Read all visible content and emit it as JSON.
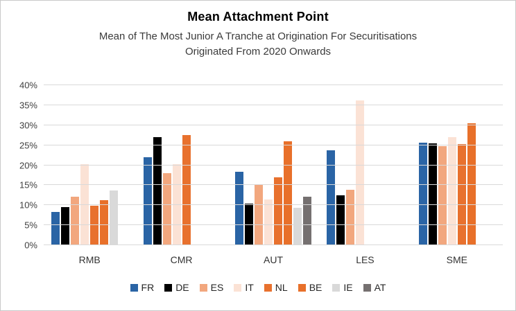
{
  "frame": {
    "background": "#FFFFFF",
    "border_color": "#C9C9C9"
  },
  "chart_data": {
    "type": "bar",
    "title": "Mean Attachment Point",
    "subtitle_line1": "Mean of The Most Junior A Tranche at Origination For Securitisations",
    "subtitle_line2": "Originated From 2020 Onwards",
    "xlabel": "",
    "ylabel": "",
    "categories": [
      "RMB",
      "CMR",
      "AUT",
      "LES",
      "SME"
    ],
    "series": [
      {
        "name": "FR",
        "color": "#2A64A5",
        "values": [
          8.3,
          22.0,
          18.4,
          23.8,
          25.7
        ]
      },
      {
        "name": "DE",
        "color": "#000000",
        "values": [
          9.5,
          27.1,
          10.4,
          12.4,
          25.5
        ]
      },
      {
        "name": "ES",
        "color": "#F2A77E",
        "values": [
          12.1,
          18.0,
          15.3,
          13.8,
          24.8
        ]
      },
      {
        "name": "IT",
        "color": "#FBE2D5",
        "values": [
          20.2,
          20.2,
          11.5,
          36.2,
          27.1
        ]
      },
      {
        "name": "NL",
        "color": "#E8712E",
        "values": [
          9.9,
          27.5,
          17.0,
          null,
          25.2
        ]
      },
      {
        "name": "BE",
        "color": "#E8702A",
        "values": [
          11.3,
          null,
          26.0,
          null,
          30.4
        ]
      },
      {
        "name": "IE",
        "color": "#D9D9D9",
        "values": [
          13.7,
          null,
          9.4,
          null,
          null
        ]
      },
      {
        "name": "AT",
        "color": "#757070",
        "values": [
          null,
          null,
          12.1,
          null,
          null
        ]
      }
    ],
    "y_ticks": [
      "0%",
      "5%",
      "10%",
      "15%",
      "20%",
      "25%",
      "30%",
      "35%",
      "40%"
    ],
    "ylim": [
      0,
      40
    ],
    "grid": true,
    "gridline_color": "#D9D9D9",
    "axis_text_color": "#404040",
    "legend_position": "bottom"
  }
}
